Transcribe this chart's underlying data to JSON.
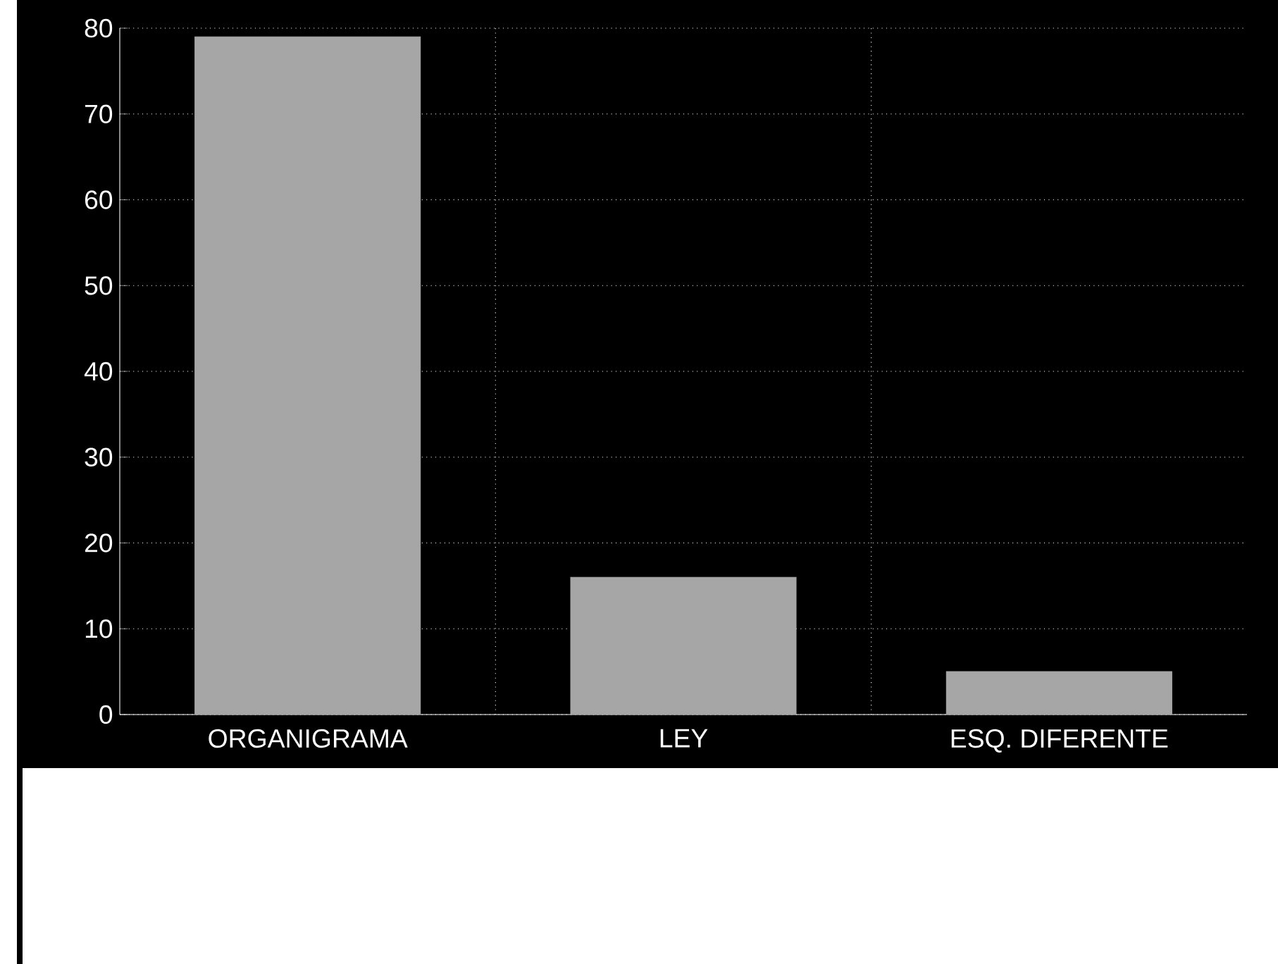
{
  "chart_data": {
    "type": "bar",
    "categories": [
      "ORGANIGRAMA",
      "LEY",
      "ESQ. DIFERENTE"
    ],
    "values": [
      79,
      16,
      5
    ],
    "color": "#a6a6a6",
    "ylim": [
      0,
      80
    ],
    "yticks": [
      0,
      10,
      20,
      30,
      40,
      50,
      60,
      70,
      80
    ],
    "grid": true
  }
}
